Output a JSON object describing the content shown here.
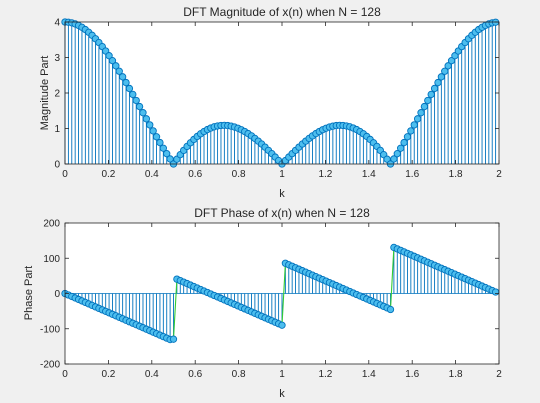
{
  "chart_data": [
    {
      "type": "stem",
      "title": "DFT Magnitude of x(n) when N = 128",
      "xlabel": "k",
      "ylabel": "Magnitude Part",
      "xlim": [
        0,
        2
      ],
      "ylim": [
        0,
        4
      ],
      "xticks": [
        "0",
        "0.2",
        "0.4",
        "0.6",
        "0.8",
        "1",
        "1.2",
        "1.4",
        "1.6",
        "1.8",
        "2"
      ],
      "yticks": [
        "0",
        "1",
        "2",
        "3",
        "4"
      ],
      "grid": false,
      "signal": {
        "N": 128,
        "x_n": [
          1,
          1,
          1,
          1
        ],
        "k_step": 0.015625,
        "k_end": 1.984375,
        "quantity": "magnitude"
      },
      "stem_color": "#0072BD",
      "marker_face_color": "#4DBEEE",
      "line_color": "#33CC33"
    },
    {
      "type": "stem",
      "title": "DFT Phase of x(n) when N = 128",
      "xlabel": "k",
      "ylabel": "Phase Part",
      "xlim": [
        0,
        2
      ],
      "ylim": [
        -200,
        200
      ],
      "xticks": [
        "0",
        "0.2",
        "0.4",
        "0.6",
        "0.8",
        "1",
        "1.2",
        "1.4",
        "1.6",
        "1.8",
        "2"
      ],
      "yticks": [
        "-200",
        "-100",
        "0",
        "100",
        "200"
      ],
      "grid": false,
      "signal": {
        "N": 128,
        "x_n": [
          1,
          1,
          1,
          1
        ],
        "k_step": 0.015625,
        "k_end": 1.984375,
        "quantity": "phase_degrees"
      },
      "stem_color": "#0072BD",
      "marker_face_color": "#4DBEEE",
      "line_color": "#33CC33"
    }
  ]
}
